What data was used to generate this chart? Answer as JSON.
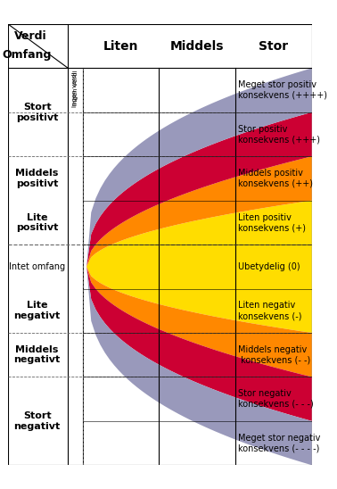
{
  "title": "",
  "col_labels": [
    "Liten",
    "Middels",
    "Stor"
  ],
  "row_labels": [
    "Stort\npositivt",
    "Middels\npositivt",
    "Lite\npositivt\nIntet omfang\nLite\nnegatvit",
    "Middels\nnegativt",
    "Stort\nnegativt"
  ],
  "row_label_texts": [
    "Stort\npositivt",
    "Middels\npositivt",
    "Lite\npositivt",
    "Middels\nnegativt",
    "Stort\nnegativt"
  ],
  "consequence_labels": [
    "Meget stor positiv\nkonsekvens (++++)",
    "Stor positiv\nkonsekvens (+++)",
    "Middels positiv\nkonsekvens (++)",
    "Liten positiv\nkonsekvens (+)",
    "Ubetydelig (0)",
    "Liten negativ\nkonsekvens (-)",
    "Middels negativ\n konsekvens (- -)",
    "Stor negativ\nkonsekvens (- - -)",
    "Meget stor negativ\nkonsekvens (- - - -)"
  ],
  "colors": {
    "meget_stor_pos": "#9999cc",
    "stor_pos": "#cc0033",
    "middels_pos": "#ff6600",
    "liten_pos": "#ffaa00",
    "ubetydelig": "#ffff00",
    "liten_neg": "#ffaa00",
    "middels_neg": "#ff6600",
    "stor_neg": "#cc0033",
    "meget_stor_neg": "#9999cc",
    "yellow": "#ffdd00",
    "orange": "#ff8800",
    "red": "#cc0033",
    "purple": "#9999bb"
  },
  "grid_color": "#000000",
  "dashed_color": "#666666",
  "bg_color": "#ffffff",
  "header_bg": "#ffffff",
  "label_color": "#000000"
}
